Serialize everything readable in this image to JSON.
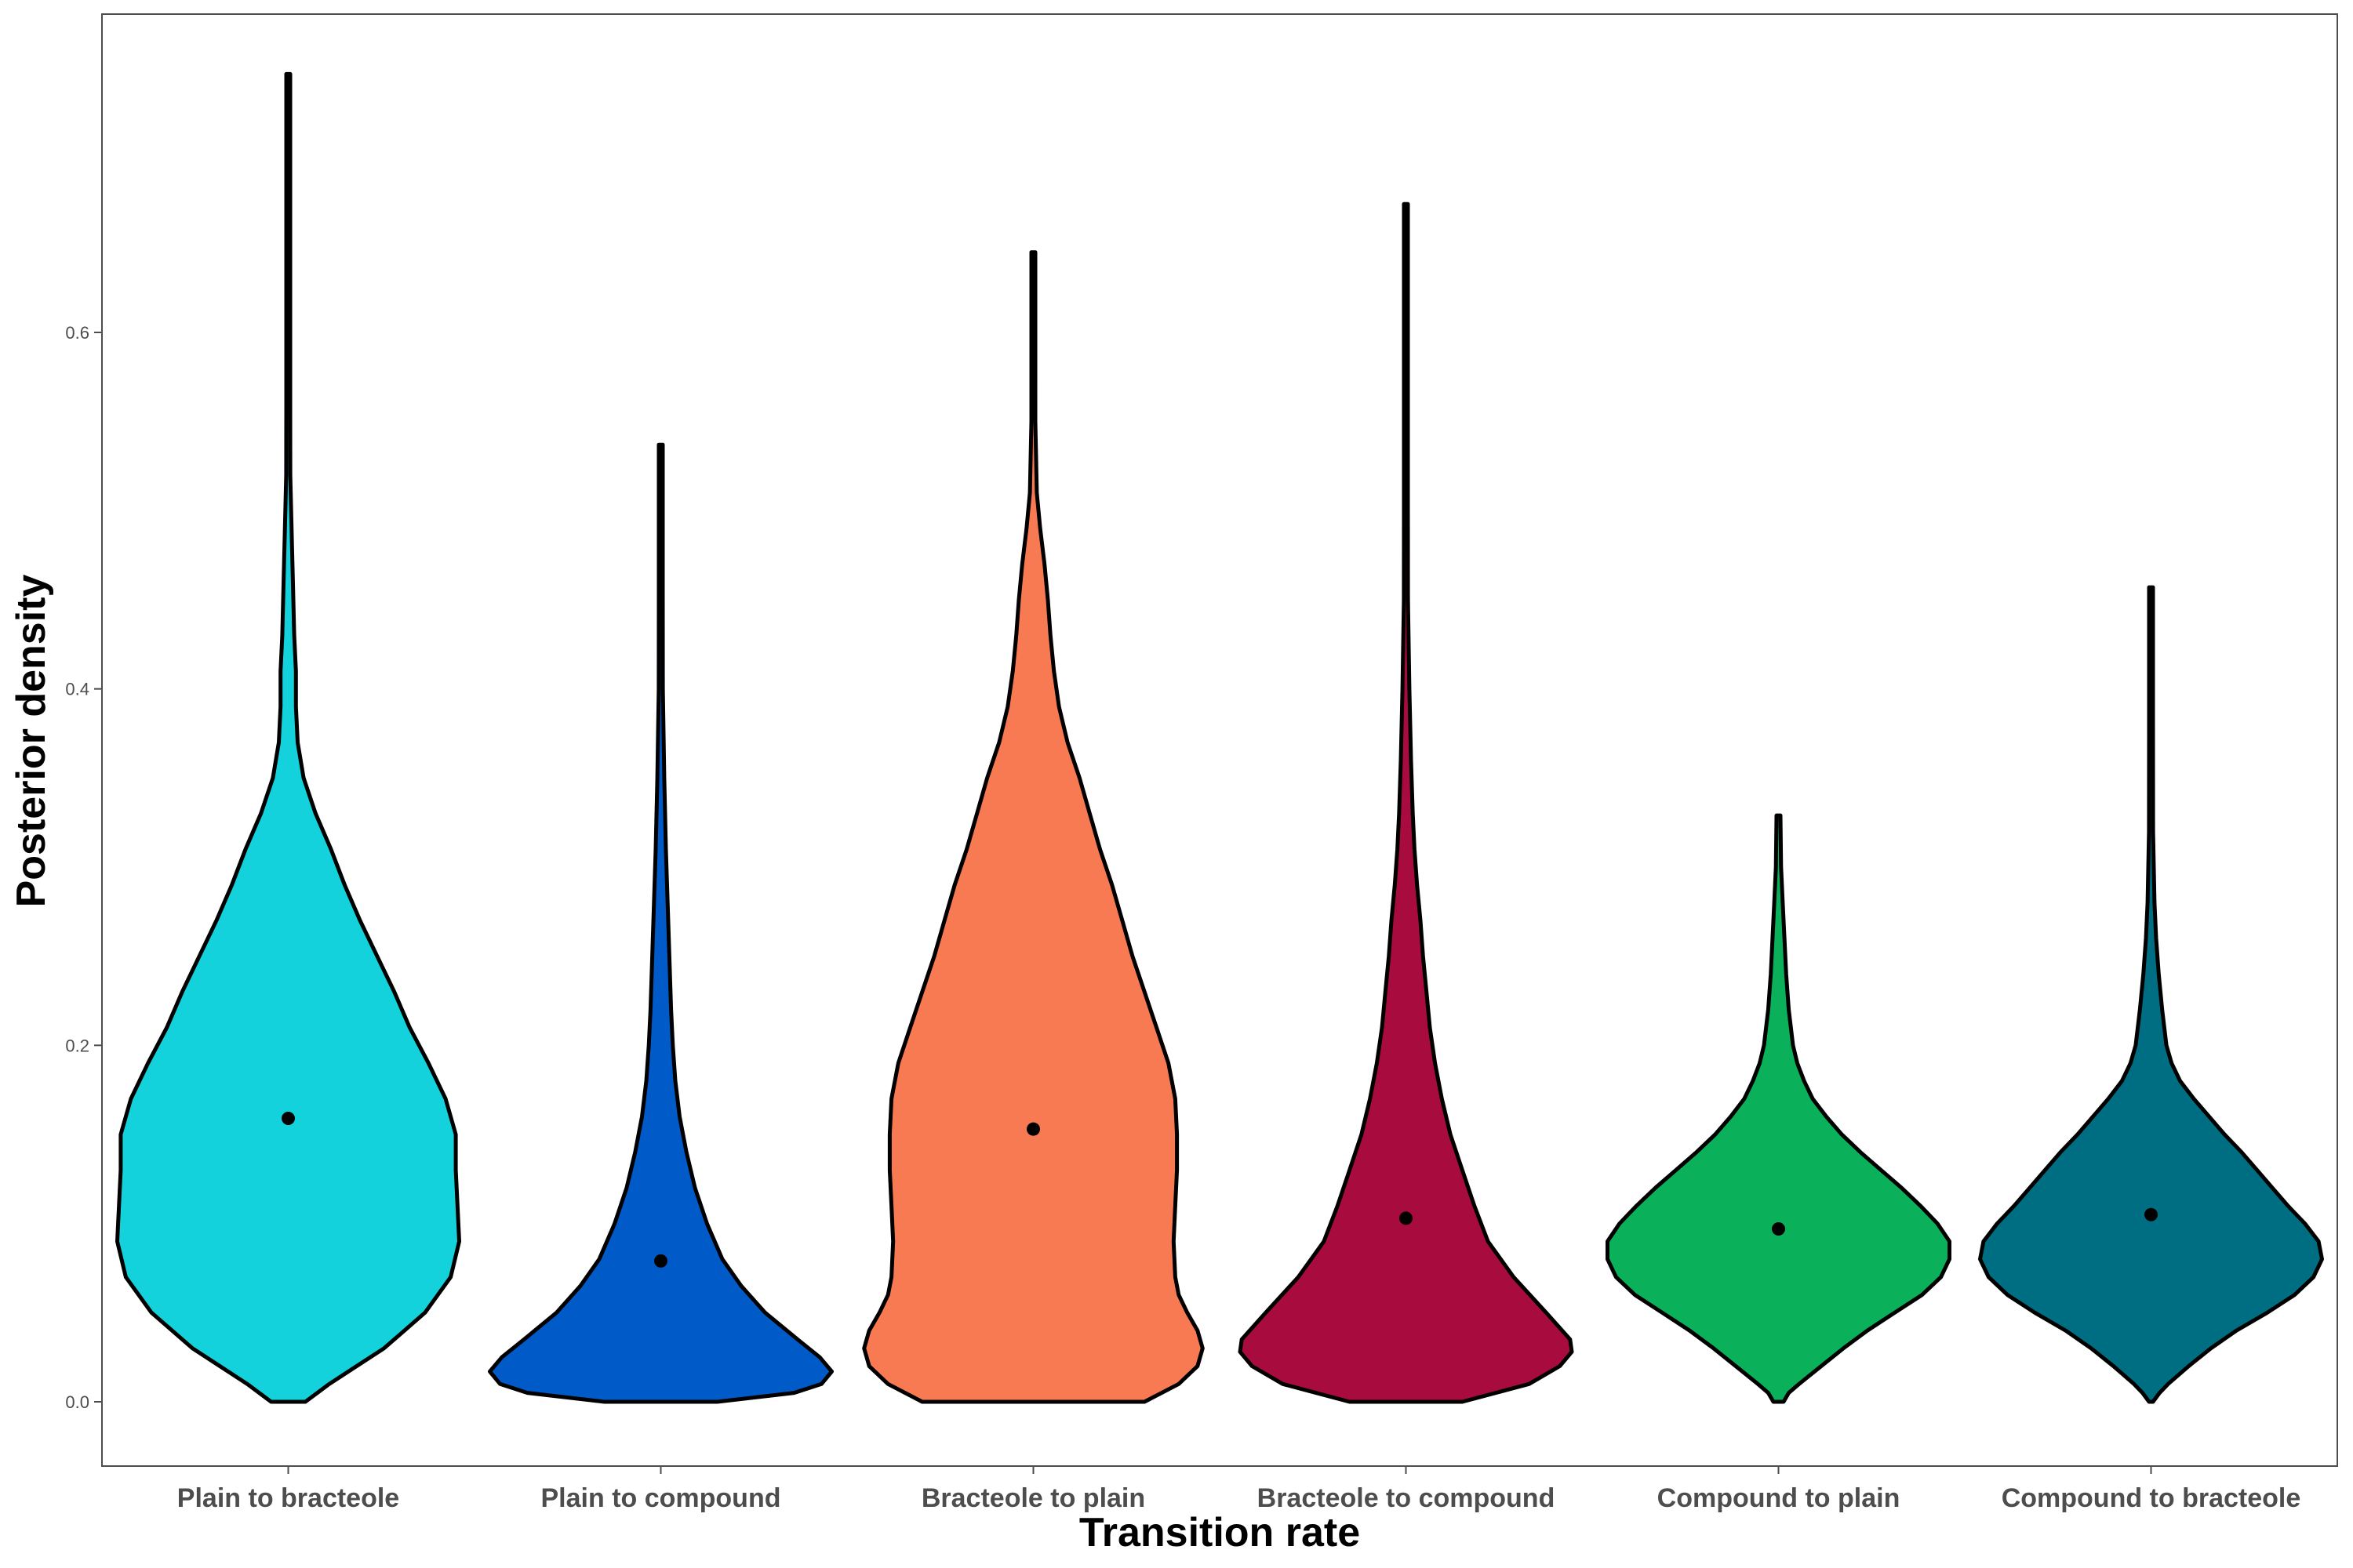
{
  "chart_data": {
    "type": "violin",
    "xlabel": "Transition rate",
    "ylabel": "Posterior density",
    "ylim": [
      -0.036,
      0.78
    ],
    "yticks": [
      0.0,
      0.2,
      0.4,
      0.6
    ],
    "ytick_labels": [
      "0.0",
      "0.2",
      "0.4",
      "0.6"
    ],
    "grid": false,
    "legend": "none",
    "categories": [
      "Plain to bracteole",
      "Plain to compound",
      "Bracteole to plain",
      "Bracteole to compound",
      "Compound to plain",
      "Compound to bracteole"
    ],
    "series": [
      {
        "category": "Plain to bracteole",
        "color": "#14d2dc",
        "min": 0.0,
        "max": 0.745,
        "mean": 0.159,
        "profile": [
          [
            0.0,
            0.1
          ],
          [
            0.01,
            0.24
          ],
          [
            0.02,
            0.4
          ],
          [
            0.03,
            0.56
          ],
          [
            0.05,
            0.8
          ],
          [
            0.07,
            0.95
          ],
          [
            0.09,
            1.0
          ],
          [
            0.11,
            0.99
          ],
          [
            0.13,
            0.98
          ],
          [
            0.15,
            0.98
          ],
          [
            0.17,
            0.92
          ],
          [
            0.19,
            0.82
          ],
          [
            0.21,
            0.71
          ],
          [
            0.23,
            0.62
          ],
          [
            0.25,
            0.52
          ],
          [
            0.27,
            0.42
          ],
          [
            0.29,
            0.33
          ],
          [
            0.31,
            0.25
          ],
          [
            0.33,
            0.16
          ],
          [
            0.35,
            0.09
          ],
          [
            0.37,
            0.055
          ],
          [
            0.39,
            0.045
          ],
          [
            0.41,
            0.045
          ],
          [
            0.43,
            0.035
          ],
          [
            0.45,
            0.03
          ],
          [
            0.48,
            0.022
          ],
          [
            0.52,
            0.012
          ],
          [
            0.56,
            0.008
          ],
          [
            0.62,
            0.006
          ],
          [
            0.68,
            0.005
          ],
          [
            0.745,
            0.005
          ]
        ]
      },
      {
        "category": "Plain to compound",
        "color": "#005bc8",
        "min": 0.0,
        "max": 0.537,
        "mean": 0.079,
        "profile": [
          [
            0.0,
            0.33
          ],
          [
            0.005,
            0.78
          ],
          [
            0.01,
            0.94
          ],
          [
            0.017,
            1.0
          ],
          [
            0.025,
            0.93
          ],
          [
            0.035,
            0.8
          ],
          [
            0.05,
            0.61
          ],
          [
            0.065,
            0.47
          ],
          [
            0.08,
            0.36
          ],
          [
            0.1,
            0.27
          ],
          [
            0.12,
            0.2
          ],
          [
            0.14,
            0.15
          ],
          [
            0.16,
            0.11
          ],
          [
            0.18,
            0.085
          ],
          [
            0.2,
            0.07
          ],
          [
            0.22,
            0.06
          ],
          [
            0.25,
            0.05
          ],
          [
            0.28,
            0.04
          ],
          [
            0.31,
            0.03
          ],
          [
            0.35,
            0.02
          ],
          [
            0.4,
            0.012
          ],
          [
            0.45,
            0.008
          ],
          [
            0.5,
            0.006
          ],
          [
            0.537,
            0.005
          ]
        ]
      },
      {
        "category": "Bracteole to plain",
        "color": "#f87a52",
        "min": 0.0,
        "max": 0.645,
        "mean": 0.153,
        "profile": [
          [
            0.0,
            0.65
          ],
          [
            0.01,
            0.85
          ],
          [
            0.02,
            0.96
          ],
          [
            0.03,
            0.99
          ],
          [
            0.04,
            0.96
          ],
          [
            0.05,
            0.9
          ],
          [
            0.06,
            0.85
          ],
          [
            0.07,
            0.83
          ],
          [
            0.09,
            0.82
          ],
          [
            0.11,
            0.83
          ],
          [
            0.13,
            0.84
          ],
          [
            0.15,
            0.84
          ],
          [
            0.17,
            0.83
          ],
          [
            0.19,
            0.79
          ],
          [
            0.21,
            0.72
          ],
          [
            0.23,
            0.65
          ],
          [
            0.25,
            0.58
          ],
          [
            0.27,
            0.52
          ],
          [
            0.29,
            0.46
          ],
          [
            0.31,
            0.39
          ],
          [
            0.33,
            0.33
          ],
          [
            0.35,
            0.27
          ],
          [
            0.37,
            0.2
          ],
          [
            0.39,
            0.15
          ],
          [
            0.41,
            0.12
          ],
          [
            0.43,
            0.1
          ],
          [
            0.45,
            0.085
          ],
          [
            0.47,
            0.065
          ],
          [
            0.49,
            0.04
          ],
          [
            0.51,
            0.02
          ],
          [
            0.55,
            0.01
          ],
          [
            0.6,
            0.007
          ],
          [
            0.645,
            0.005
          ]
        ]
      },
      {
        "category": "Bracteole to compound",
        "color": "#a80b3d",
        "min": 0.0,
        "max": 0.672,
        "mean": 0.103,
        "profile": [
          [
            0.0,
            0.33
          ],
          [
            0.01,
            0.72
          ],
          [
            0.02,
            0.9
          ],
          [
            0.028,
            0.97
          ],
          [
            0.035,
            0.96
          ],
          [
            0.05,
            0.82
          ],
          [
            0.07,
            0.63
          ],
          [
            0.09,
            0.48
          ],
          [
            0.11,
            0.4
          ],
          [
            0.13,
            0.33
          ],
          [
            0.15,
            0.26
          ],
          [
            0.17,
            0.21
          ],
          [
            0.19,
            0.17
          ],
          [
            0.21,
            0.14
          ],
          [
            0.23,
            0.12
          ],
          [
            0.25,
            0.1
          ],
          [
            0.27,
            0.085
          ],
          [
            0.29,
            0.065
          ],
          [
            0.31,
            0.05
          ],
          [
            0.33,
            0.04
          ],
          [
            0.36,
            0.03
          ],
          [
            0.4,
            0.02
          ],
          [
            0.45,
            0.012
          ],
          [
            0.5,
            0.008
          ],
          [
            0.58,
            0.006
          ],
          [
            0.672,
            0.005
          ]
        ]
      },
      {
        "category": "Compound to plain",
        "color": "#0ab15a",
        "min": 0.0,
        "max": 0.329,
        "mean": 0.097,
        "profile": [
          [
            0.0,
            0.03
          ],
          [
            0.005,
            0.06
          ],
          [
            0.01,
            0.12
          ],
          [
            0.02,
            0.25
          ],
          [
            0.03,
            0.38
          ],
          [
            0.04,
            0.52
          ],
          [
            0.05,
            0.68
          ],
          [
            0.06,
            0.84
          ],
          [
            0.07,
            0.95
          ],
          [
            0.08,
            1.0
          ],
          [
            0.09,
            1.0
          ],
          [
            0.1,
            0.93
          ],
          [
            0.11,
            0.83
          ],
          [
            0.12,
            0.72
          ],
          [
            0.13,
            0.6
          ],
          [
            0.14,
            0.48
          ],
          [
            0.15,
            0.37
          ],
          [
            0.16,
            0.28
          ],
          [
            0.17,
            0.2
          ],
          [
            0.18,
            0.15
          ],
          [
            0.19,
            0.11
          ],
          [
            0.2,
            0.085
          ],
          [
            0.22,
            0.06
          ],
          [
            0.24,
            0.045
          ],
          [
            0.26,
            0.035
          ],
          [
            0.28,
            0.025
          ],
          [
            0.3,
            0.015
          ],
          [
            0.329,
            0.008
          ]
        ]
      },
      {
        "category": "Compound to bracteole",
        "color": "#006e82",
        "min": 0.0,
        "max": 0.457,
        "mean": 0.105,
        "profile": [
          [
            0.0,
            0.01
          ],
          [
            0.005,
            0.05
          ],
          [
            0.01,
            0.1
          ],
          [
            0.02,
            0.22
          ],
          [
            0.03,
            0.35
          ],
          [
            0.04,
            0.5
          ],
          [
            0.05,
            0.68
          ],
          [
            0.06,
            0.84
          ],
          [
            0.07,
            0.95
          ],
          [
            0.08,
            1.0
          ],
          [
            0.09,
            0.98
          ],
          [
            0.1,
            0.9
          ],
          [
            0.11,
            0.8
          ],
          [
            0.12,
            0.71
          ],
          [
            0.13,
            0.62
          ],
          [
            0.14,
            0.53
          ],
          [
            0.15,
            0.43
          ],
          [
            0.16,
            0.34
          ],
          [
            0.17,
            0.25
          ],
          [
            0.18,
            0.17
          ],
          [
            0.19,
            0.12
          ],
          [
            0.2,
            0.09
          ],
          [
            0.22,
            0.065
          ],
          [
            0.24,
            0.045
          ],
          [
            0.26,
            0.03
          ],
          [
            0.28,
            0.02
          ],
          [
            0.32,
            0.012
          ],
          [
            0.38,
            0.008
          ],
          [
            0.457,
            0.006
          ]
        ]
      }
    ]
  }
}
